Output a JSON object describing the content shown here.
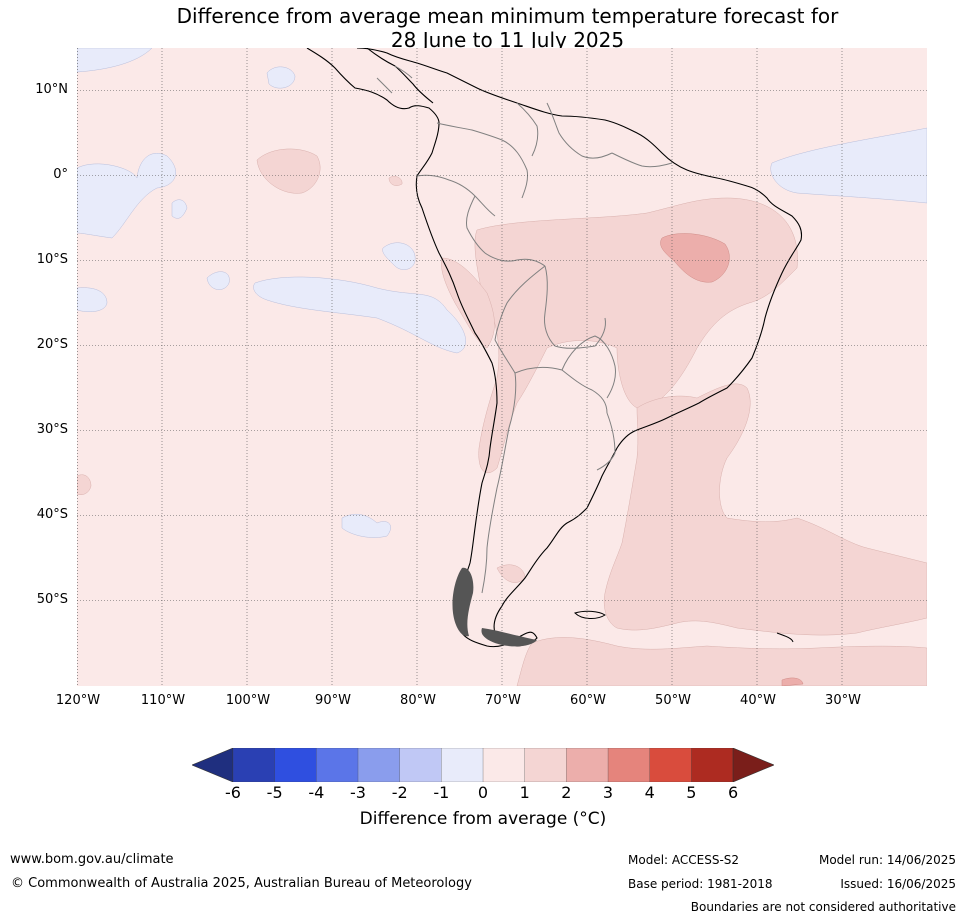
{
  "title_line1": "Difference from average mean minimum temperature forecast for",
  "title_line2": "28 June to 11 July 2025",
  "map": {
    "lat_labels": [
      "10°N",
      "0°",
      "10°S",
      "20°S",
      "30°S",
      "40°S",
      "50°S"
    ],
    "lon_labels": [
      "120°W",
      "110°W",
      "100°W",
      "90°W",
      "80°W",
      "70°W",
      "60°W",
      "50°W",
      "40°W",
      "30°W"
    ],
    "extent": {
      "lon": [
        -120,
        -20
      ],
      "lat": [
        -60,
        15
      ]
    },
    "dominant_category": "0 to 1",
    "colors": {
      "ocean_base": "#fbe9e8",
      "neg_0_1": "#e8ebfa",
      "pos_1_2": "#f4d5d3",
      "pos_2_3": "#ecaeab",
      "coast": "#000000",
      "borders": "#808080",
      "grid": "#555555"
    }
  },
  "colorbar": {
    "ticks": [
      "-6",
      "-5",
      "-4",
      "-3",
      "-2",
      "-1",
      "0",
      "1",
      "2",
      "3",
      "4",
      "5",
      "6"
    ],
    "colors": [
      "#1f2f7f",
      "#2a40b3",
      "#2f4fe0",
      "#5b75e8",
      "#8a9ded",
      "#c0c8f5",
      "#e8ebfa",
      "#fbe9e8",
      "#f4d5d3",
      "#ecaeab",
      "#e5847c",
      "#d94c3d",
      "#ad2b21",
      "#7a1e1a"
    ],
    "label": "Difference from average (°C)"
  },
  "footer": {
    "website": "www.bom.gov.au/climate",
    "copyright": "© Commonwealth of Australia 2025, Australian Bureau of Meteorology",
    "model": "Model: ACCESS-S2",
    "base_period": "Base period: 1981-2018",
    "model_run": "Model run: 14/06/2025",
    "issued": "Issued: 16/06/2025",
    "disclaimer": "Boundaries are not considered authoritative"
  }
}
